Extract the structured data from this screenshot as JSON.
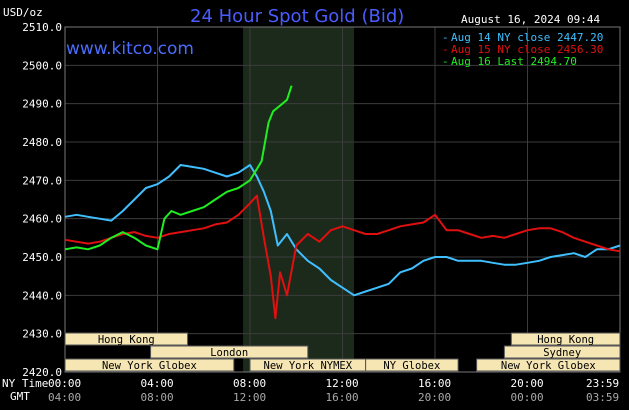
{
  "header": {
    "title": "24 Hour Spot Gold (Bid)",
    "units": "USD/oz",
    "date": "August 16, 2024 09:44",
    "brand": "www.kitco.com"
  },
  "footer": {
    "ny_time_label": "NY Time",
    "gmt_label": "GMT"
  },
  "colors": {
    "background": "#000000",
    "grid": "#3c3c3c",
    "highlight": "#1c2a1c",
    "aug14": "#40bfff",
    "aug15": "#e01010",
    "aug16": "#20ee20",
    "band": "#f5e6b4",
    "title": "#4a5cff"
  },
  "market_bands": [
    {
      "label": "Hong Kong",
      "row": 0
    },
    {
      "label": "Hong Kong",
      "row": 0
    },
    {
      "label": "London",
      "row": 1
    },
    {
      "label": "Sydney",
      "row": 1
    },
    {
      "label": "New York Globex",
      "row": 2
    },
    {
      "label": "New York NYMEX",
      "row": 2
    },
    {
      "label": "NY Globex",
      "row": 2
    },
    {
      "label": "New York Globex",
      "row": 2
    }
  ],
  "chart_data": {
    "type": "line",
    "title": "24 Hour Spot Gold (Bid)",
    "ylabel": "USD/oz",
    "ylim": [
      2420,
      2510
    ],
    "xlim": [
      0,
      24
    ],
    "yticks": [
      "2420.0",
      "2430.0",
      "2440.0",
      "2450.0",
      "2460.0",
      "2470.0",
      "2480.0",
      "2490.0",
      "2500.0",
      "2510.0"
    ],
    "xticks_ny": [
      "00:00",
      "04:00",
      "08:00",
      "12:00",
      "16:00",
      "20:00",
      "23:59"
    ],
    "xticks_gmt": [
      "04:00",
      "08:00",
      "12:00",
      "16:00",
      "20:00",
      "00:00",
      "03:59"
    ],
    "highlight_range": [
      7.7,
      12.5
    ],
    "grid": true,
    "legend_position": "top-right",
    "series": [
      {
        "name": "Aug 14 NY close 2447.20",
        "x": [
          0,
          0.5,
          1,
          1.5,
          2,
          2.5,
          3,
          3.5,
          4,
          4.5,
          5,
          5.5,
          6,
          6.5,
          7,
          7.5,
          8,
          8.3,
          8.6,
          8.9,
          9.2,
          9.6,
          10,
          10.5,
          11,
          11.5,
          12,
          12.5,
          13,
          13.5,
          14,
          14.5,
          15,
          15.5,
          16,
          16.5,
          17,
          17.5,
          18,
          18.5,
          19,
          19.5,
          20,
          20.5,
          21,
          21.5,
          22,
          22.5,
          23,
          23.5,
          24
        ],
        "values": [
          2460.5,
          2461,
          2460.5,
          2460,
          2459.5,
          2462,
          2465,
          2468,
          2469,
          2471,
          2474,
          2473.5,
          2473,
          2472,
          2471,
          2472,
          2474,
          2471,
          2467,
          2462,
          2453,
          2456,
          2452,
          2449,
          2447,
          2444,
          2442,
          2440,
          2441,
          2442,
          2443,
          2446,
          2447,
          2449,
          2450,
          2450,
          2449,
          2449,
          2449,
          2448.5,
          2448,
          2448,
          2448.5,
          2449,
          2450,
          2450.5,
          2451,
          2450,
          2452,
          2452,
          2453
        ]
      },
      {
        "name": "Aug 15 NY close 2456.30",
        "x": [
          0,
          0.5,
          1,
          1.5,
          2,
          2.5,
          3,
          3.5,
          4,
          4.5,
          5,
          5.5,
          6,
          6.5,
          7,
          7.5,
          8,
          8.3,
          8.6,
          8.9,
          9.1,
          9.3,
          9.6,
          10,
          10.5,
          11,
          11.5,
          12,
          12.5,
          13,
          13.5,
          14,
          14.5,
          15,
          15.5,
          16,
          16.5,
          17,
          17.5,
          18,
          18.5,
          19,
          19.5,
          20,
          20.5,
          21,
          21.5,
          22,
          22.5,
          23,
          23.5,
          24
        ],
        "values": [
          2454.5,
          2454,
          2453.5,
          2454,
          2455,
          2456,
          2456.5,
          2455.5,
          2455,
          2456,
          2456.5,
          2457,
          2457.5,
          2458.5,
          2459,
          2461,
          2464,
          2466,
          2455,
          2445,
          2434,
          2446,
          2440,
          2453,
          2456,
          2454,
          2457,
          2458,
          2457,
          2456,
          2456,
          2457,
          2458,
          2458.5,
          2459,
          2461,
          2457,
          2457,
          2456,
          2455,
          2455.5,
          2455,
          2456,
          2457,
          2457.5,
          2457.5,
          2456.5,
          2455,
          2454,
          2453,
          2452,
          2451.5
        ]
      },
      {
        "name": "Aug 16 Last 2494.70",
        "x": [
          0,
          0.5,
          1,
          1.5,
          2,
          2.5,
          3,
          3.5,
          4,
          4.3,
          4.6,
          5,
          5.5,
          6,
          6.5,
          7,
          7.5,
          8,
          8.2,
          8.5,
          8.8,
          9,
          9.2,
          9.4,
          9.6,
          9.8
        ],
        "values": [
          2452,
          2452.5,
          2452,
          2453,
          2455,
          2456.5,
          2455,
          2453,
          2452,
          2460,
          2462,
          2461,
          2462,
          2463,
          2465,
          2467,
          2468,
          2470,
          2472,
          2475,
          2485,
          2488,
          2489,
          2490,
          2491,
          2494.7
        ]
      }
    ]
  }
}
